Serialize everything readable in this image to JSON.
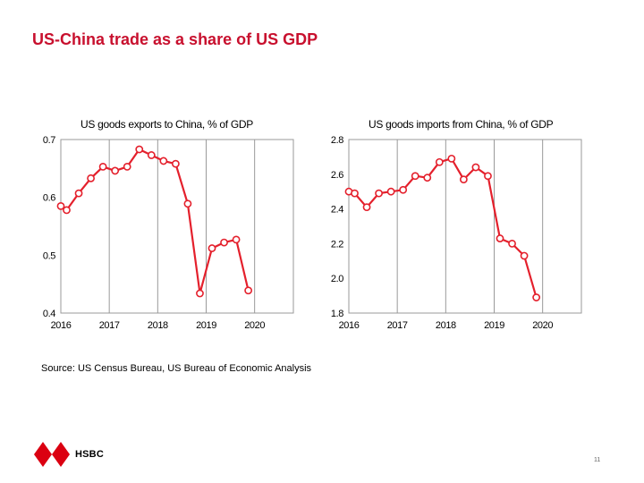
{
  "slide": {
    "title": "US-China trade as a share of US GDP",
    "source": "Source: US Census Bureau, US Bureau of Economic Analysis",
    "logo_name": "HSBC",
    "page_number": "11"
  },
  "colors": {
    "title": "#c8102e",
    "series_line": "#e4202c",
    "marker_fill": "#ffffff",
    "grid": "#9a9a9a",
    "logo_red": "#db0011"
  },
  "chart_data": [
    {
      "type": "line",
      "title": "US goods exports to China, % of GDP",
      "xlabel": "",
      "ylabel": "",
      "xlim": [
        2016,
        2020.8
      ],
      "ylim": [
        0.4,
        0.7
      ],
      "x_ticks": [
        "2016",
        "2017",
        "2018",
        "2019",
        "2020"
      ],
      "y_ticks": [
        "0.7",
        "0.6",
        "0.5",
        "0.4"
      ],
      "grid": true,
      "series": [
        {
          "x": [
            2016.0,
            2016.12,
            2016.37,
            2016.62,
            2016.87,
            2017.12,
            2017.37,
            2017.62,
            2017.87,
            2018.12,
            2018.37,
            2018.62,
            2018.87,
            2019.12,
            2019.37,
            2019.62,
            2019.87
          ],
          "values": [
            0.585,
            0.578,
            0.607,
            0.633,
            0.653,
            0.646,
            0.653,
            0.683,
            0.673,
            0.663,
            0.658,
            0.589,
            0.434,
            0.512,
            0.522,
            0.527,
            0.439
          ]
        }
      ]
    },
    {
      "type": "line",
      "title": "US goods imports from China, % of GDP",
      "xlabel": "",
      "ylabel": "",
      "xlim": [
        2016,
        2020.8
      ],
      "ylim": [
        1.8,
        2.8
      ],
      "x_ticks": [
        "2016",
        "2017",
        "2018",
        "2019",
        "2020"
      ],
      "y_ticks": [
        "2.8",
        "2.6",
        "2.4",
        "2.2",
        "2.0",
        "1.8"
      ],
      "grid": true,
      "series": [
        {
          "x": [
            2016.0,
            2016.12,
            2016.37,
            2016.62,
            2016.87,
            2017.12,
            2017.37,
            2017.62,
            2017.87,
            2018.12,
            2018.37,
            2018.62,
            2018.87,
            2019.12,
            2019.37,
            2019.62,
            2019.87
          ],
          "values": [
            2.5,
            2.49,
            2.41,
            2.49,
            2.5,
            2.51,
            2.59,
            2.58,
            2.67,
            2.69,
            2.57,
            2.64,
            2.59,
            2.23,
            2.2,
            2.13,
            1.89
          ]
        }
      ]
    }
  ]
}
